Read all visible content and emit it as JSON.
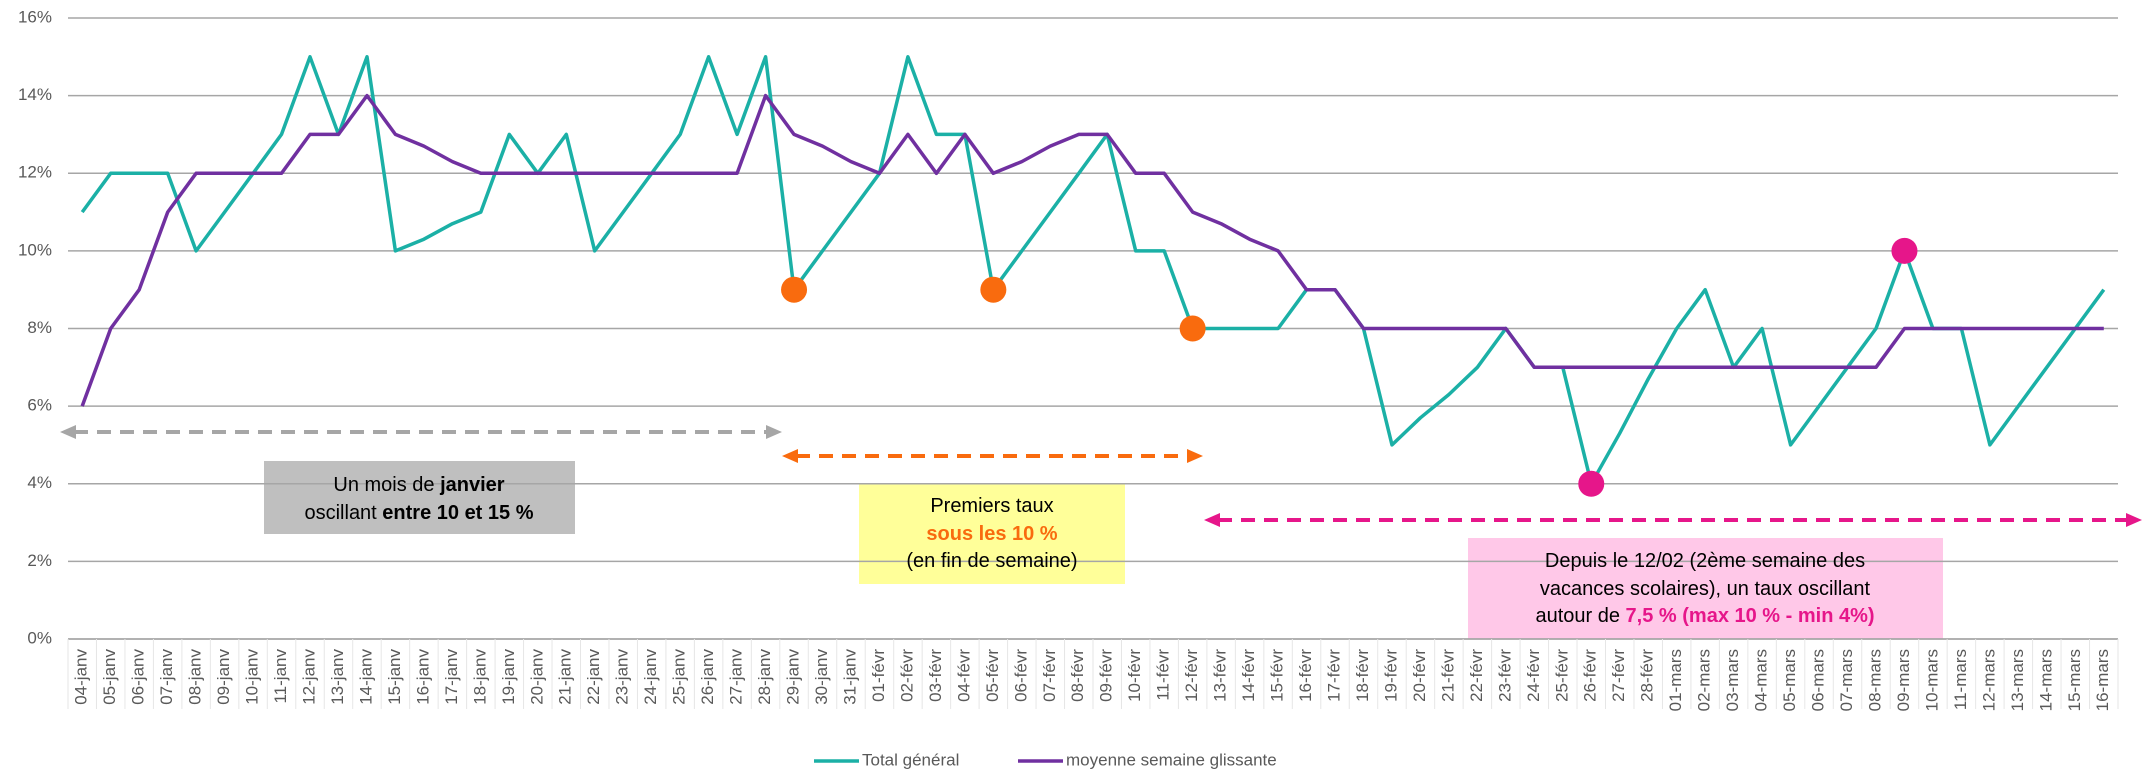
{
  "chart_data": {
    "type": "line",
    "categories": [
      "04-janv",
      "05-janv",
      "06-janv",
      "07-janv",
      "08-janv",
      "09-janv",
      "10-janv",
      "11-janv",
      "12-janv",
      "13-janv",
      "14-janv",
      "15-janv",
      "16-janv",
      "17-janv",
      "18-janv",
      "19-janv",
      "20-janv",
      "21-janv",
      "22-janv",
      "23-janv",
      "24-janv",
      "25-janv",
      "26-janv",
      "27-janv",
      "28-janv",
      "29-janv",
      "30-janv",
      "31-janv",
      "01-févr",
      "02-févr",
      "03-févr",
      "04-févr",
      "05-févr",
      "06-févr",
      "07-févr",
      "08-févr",
      "09-févr",
      "10-févr",
      "11-févr",
      "12-févr",
      "13-févr",
      "14-févr",
      "15-févr",
      "16-févr",
      "17-févr",
      "18-févr",
      "19-févr",
      "20-févr",
      "21-févr",
      "22-févr",
      "23-févr",
      "24-févr",
      "25-févr",
      "26-févr",
      "27-févr",
      "28-févr",
      "01-mars",
      "02-mars",
      "03-mars",
      "04-mars",
      "05-mars",
      "06-mars",
      "07-mars",
      "08-mars",
      "09-mars",
      "10-mars",
      "11-mars",
      "12-mars",
      "13-mars",
      "14-mars",
      "15-mars",
      "16-mars"
    ],
    "series": [
      {
        "name": "Total général",
        "color": "#1bb0a6",
        "values": [
          11,
          12,
          12,
          12,
          10,
          11,
          12,
          13,
          15,
          13,
          15,
          10,
          10.3,
          10.7,
          11,
          13,
          12,
          13,
          10,
          11,
          12,
          13,
          15,
          13,
          15,
          9,
          10,
          11,
          12,
          15,
          13,
          13,
          9,
          10,
          11,
          12,
          13,
          10,
          10,
          8,
          8,
          8,
          8,
          9,
          9,
          8,
          5,
          5.7,
          6.3,
          7,
          8,
          7,
          7,
          4,
          5.3,
          6.7,
          8,
          9,
          7,
          8,
          5,
          6,
          7,
          8,
          10,
          8,
          8,
          5,
          6,
          7,
          8,
          9
        ]
      },
      {
        "name": "moyenne semaine glissante",
        "color": "#7030a0",
        "values": [
          6,
          8,
          9,
          11,
          12,
          12,
          12,
          12,
          13,
          13,
          14,
          13,
          12.7,
          12.3,
          12,
          12,
          12,
          12,
          12,
          12,
          12,
          12,
          12,
          12,
          14,
          13,
          12.7,
          12.3,
          12,
          13,
          12,
          13,
          12,
          12.3,
          12.7,
          13,
          13,
          12,
          12,
          11,
          10.7,
          10.3,
          10,
          9,
          9,
          8,
          8,
          8,
          8,
          8,
          8,
          7,
          7,
          7,
          7,
          7,
          7,
          7,
          7,
          7,
          7,
          7,
          7,
          7,
          8,
          8,
          8,
          8,
          8,
          8,
          8,
          8
        ]
      }
    ],
    "highlights": [
      {
        "category": "29-janv",
        "value": 9,
        "color": "#f96b0e"
      },
      {
        "category": "05-févr",
        "value": 9,
        "color": "#f96b0e"
      },
      {
        "category": "12-févr",
        "value": 8,
        "color": "#f96b0e"
      },
      {
        "category": "26-févr",
        "value": 4,
        "color": "#e6168a"
      },
      {
        "category": "09-mars",
        "value": 10,
        "color": "#e6168a"
      }
    ],
    "ylim": [
      0,
      16
    ],
    "yticks": [
      {
        "value": 0,
        "label": "0%"
      },
      {
        "value": 2,
        "label": "2%"
      },
      {
        "value": 4,
        "label": "4%"
      },
      {
        "value": 6,
        "label": "6%"
      },
      {
        "value": 8,
        "label": "8%"
      },
      {
        "value": 10,
        "label": "10%"
      },
      {
        "value": 12,
        "label": "12%"
      },
      {
        "value": 14,
        "label": "14%"
      },
      {
        "value": 16,
        "label": "16%"
      }
    ],
    "grid": true,
    "legend": "bottom",
    "annotations": [
      {
        "lines": [
          [
            {
              "text": "Un mois de "
            },
            {
              "text": "janvier",
              "bold": true
            }
          ],
          [
            {
              "text": "oscillant "
            },
            {
              "text": "entre 10 et 15 %",
              "bold": true
            }
          ]
        ]
      },
      {
        "lines": [
          [
            {
              "text": "Premiers taux"
            }
          ],
          [
            {
              "text": "sous les 10 %",
              "bold": true,
              "color": "#f96b0e"
            }
          ],
          [
            {
              "text": "(en fin de semaine)"
            }
          ]
        ]
      },
      {
        "lines": [
          [
            {
              "text": "Depuis le 12/02 (2ème semaine des"
            }
          ],
          [
            {
              "text": "vacances scolaires), un taux oscillant"
            }
          ],
          [
            {
              "text": "autour de "
            },
            {
              "text": "7,5 % (max 10 % - min 4%)",
              "bold": true,
              "color": "#e6168a"
            }
          ]
        ]
      }
    ]
  }
}
